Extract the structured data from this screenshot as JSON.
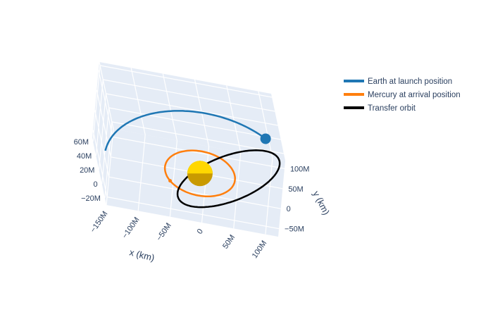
{
  "chart_data": {
    "type": "line",
    "title": "",
    "xlabel": "x (km)",
    "ylabel": "y (km)",
    "zlabel": "",
    "x_ticks": [
      "−150M",
      "−100M",
      "−50M",
      "0",
      "50M",
      "100M"
    ],
    "y_ticks": [
      "100M",
      "50M",
      "0",
      "−50M"
    ],
    "z_ticks": [
      "60M",
      "40M",
      "20M",
      "0",
      "−20M"
    ],
    "grid": true,
    "legend_position": "top-right",
    "series": [
      {
        "name": "Earth at launch position",
        "color": "#1f77b4",
        "orbit_radius_km": 150000000,
        "arc_start_deg": 50,
        "arc_end_deg": 175,
        "body_angle_deg": 50
      },
      {
        "name": "Mercury at arrival position",
        "color": "#ff7f0e",
        "orbit_radius_km": 55000000,
        "arc_start_deg": 0,
        "arc_end_deg": 360
      },
      {
        "name": "Transfer orbit",
        "color": "#000000",
        "type": "ellipse",
        "center_km": [
          45000000,
          0
        ],
        "semi_major_km": 105000000,
        "semi_minor_km": 45000000,
        "rotation_deg": 49
      }
    ],
    "sun": {
      "color": "#ffd700",
      "radius_km": 16000000
    }
  }
}
